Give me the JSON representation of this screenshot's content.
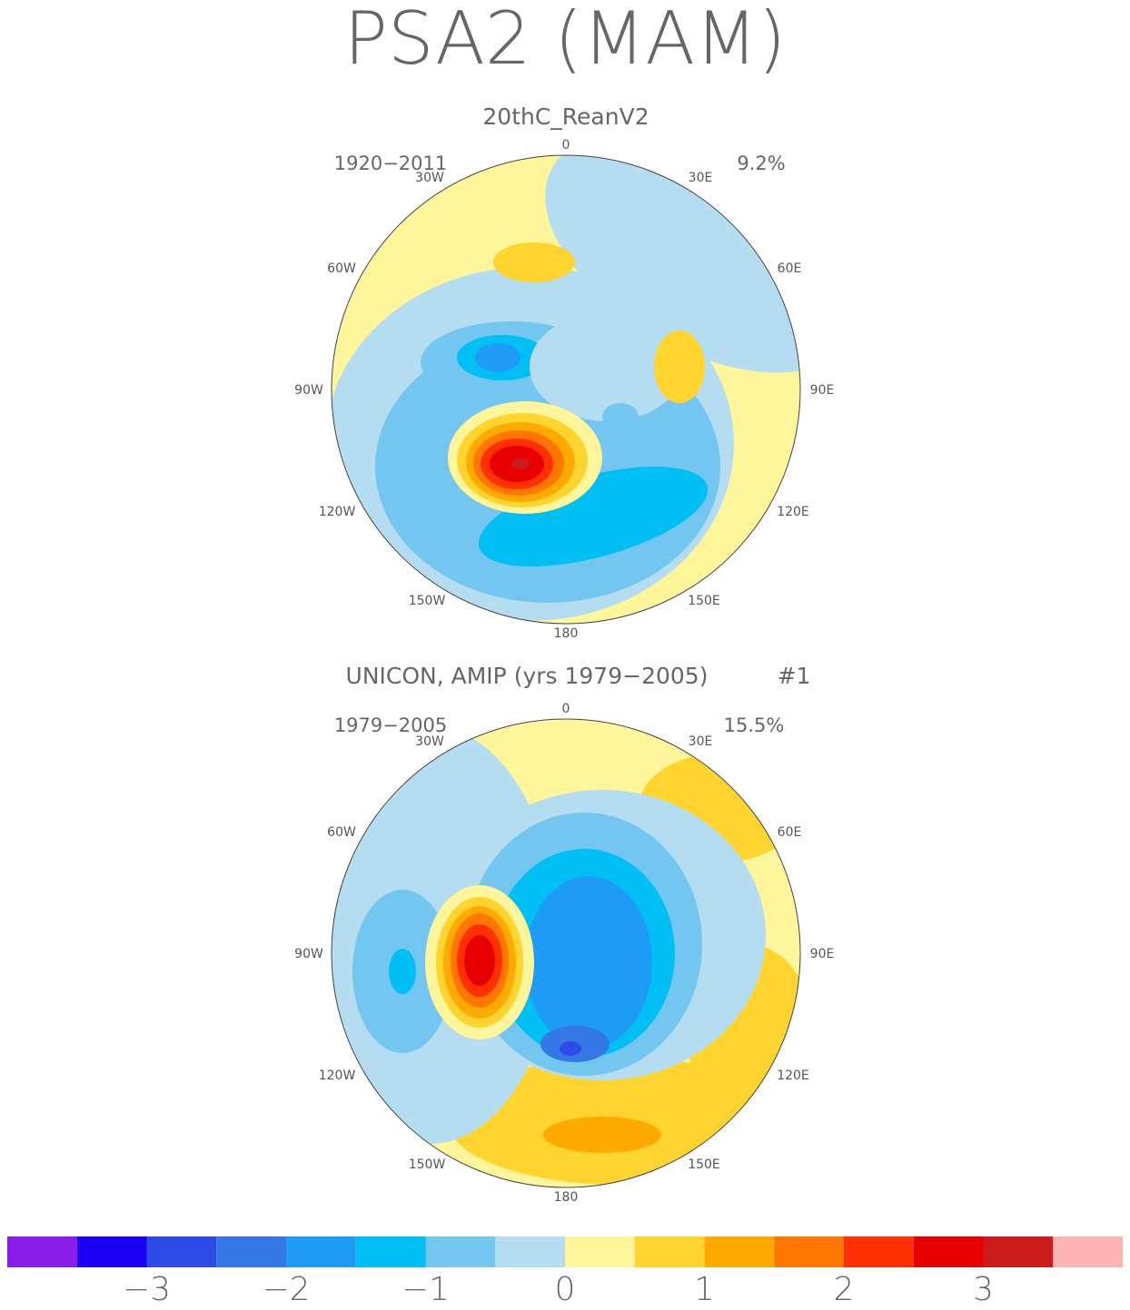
{
  "title": "PSA2 (MAM)",
  "lon_labels": [
    "0",
    "30E",
    "60E",
    "90E",
    "120E",
    "150E",
    "180",
    "150W",
    "120W",
    "90W",
    "60W",
    "30W"
  ],
  "panels": [
    {
      "title": "20thC_ReanV2",
      "period": "1920−2011",
      "variance": "9.2%"
    },
    {
      "title": "UNICON, AMIP (yrs 1979−2005)",
      "run": "#1",
      "period": "1979−2005",
      "variance": "15.5%"
    }
  ],
  "colorbar": {
    "colors": [
      "#8a1de8",
      "#1b00f5",
      "#2d4be6",
      "#3478e6",
      "#1e9bf5",
      "#00bff5",
      "#73c6ef",
      "#b5ddf1",
      "#fff59b",
      "#ffd42f",
      "#ffaa00",
      "#ff7700",
      "#ff3000",
      "#e80000",
      "#cc1b1b",
      "#ffb3b3"
    ],
    "ticks": [
      {
        "value": -3,
        "label": "−3"
      },
      {
        "value": -2,
        "label": "−2"
      },
      {
        "value": -1,
        "label": "−1"
      },
      0,
      1,
      2,
      3
    ]
  }
}
